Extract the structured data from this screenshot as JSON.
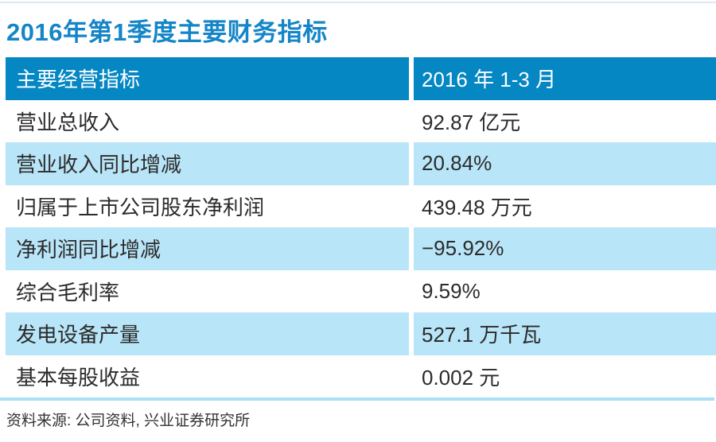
{
  "page": {
    "title": "2016年第1季度主要财务指标",
    "source_note": "资料来源: 公司资料, 兴业证券研究所"
  },
  "chart_data": {
    "type": "table",
    "title": "2016年第1季度主要财务指标",
    "columns": [
      "主要经营指标",
      "2016 年 1-3 月"
    ],
    "header": {
      "indicator": "主要经营指标",
      "period": "2016 年 1-3 月"
    },
    "rows": [
      {
        "label": "营业总收入",
        "value": "92.87 亿元",
        "number": 92.87,
        "unit": "亿元"
      },
      {
        "label": "营业收入同比增减",
        "value": "20.84%",
        "number": 20.84,
        "unit": "%"
      },
      {
        "label": "归属于上市公司股东净利润",
        "value": "439.48 万元",
        "number": 439.48,
        "unit": "万元"
      },
      {
        "label": "净利润同比增减",
        "value": "−95.92%",
        "number": -95.92,
        "unit": "%"
      },
      {
        "label": "综合毛利率",
        "value": "9.59%",
        "number": 9.59,
        "unit": "%"
      },
      {
        "label": "发电设备产量",
        "value": "527.1 万千瓦",
        "number": 527.1,
        "unit": "万千瓦"
      },
      {
        "label": "基本每股收益",
        "value": "0.002 元",
        "number": 0.002,
        "unit": "元"
      }
    ],
    "source": "资料来源: 公司资料, 兴业证券研究所",
    "layout": {
      "zebra_striping": true,
      "header_position": "top",
      "grid": "column-divider-only"
    }
  },
  "colors": {
    "title_text": "#1485c8",
    "header_bg": "#0587c4",
    "header_text": "#ffffff",
    "zebra_row_bg": "#b9e5f8",
    "row_text": "#2b2b2b",
    "bottom_rule": "#a9e0f4",
    "top_rule": "#dfe8f1"
  }
}
